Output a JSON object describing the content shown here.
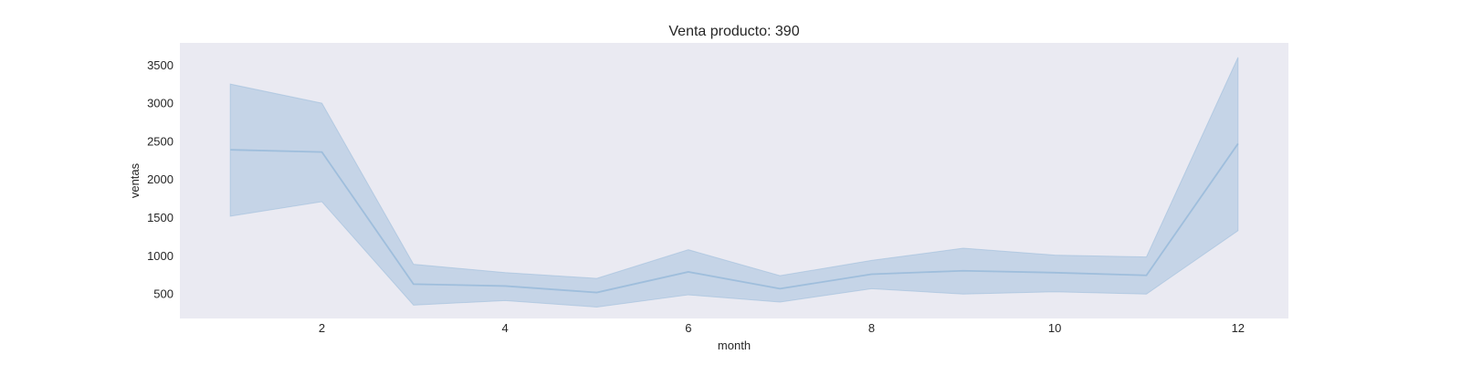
{
  "chart_data": {
    "type": "line",
    "title": "Venta producto: 390",
    "xlabel": "month",
    "ylabel": "ventas",
    "x": [
      1,
      2,
      3,
      4,
      5,
      6,
      7,
      8,
      9,
      10,
      11,
      12
    ],
    "series": [
      {
        "values": [
          2390,
          2360,
          630,
          605,
          520,
          790,
          570,
          760,
          805,
          780,
          745,
          2470
        ],
        "ci_lower": [
          1520,
          1710,
          355,
          415,
          330,
          490,
          395,
          570,
          500,
          530,
          500,
          1330
        ],
        "ci_upper": [
          3250,
          3000,
          890,
          780,
          705,
          1080,
          740,
          940,
          1100,
          1010,
          985,
          3600
        ]
      }
    ],
    "xticks": [
      2,
      4,
      6,
      8,
      10,
      12
    ],
    "yticks": [
      500,
      1000,
      1500,
      2000,
      2500,
      3000,
      3500
    ],
    "xlim": [
      0.45,
      12.55
    ],
    "ylim": [
      180,
      3790
    ],
    "grid": false,
    "colors": {
      "background": "#eaeaf2",
      "line": "#9fbedc",
      "band": "#9fbedc"
    }
  }
}
